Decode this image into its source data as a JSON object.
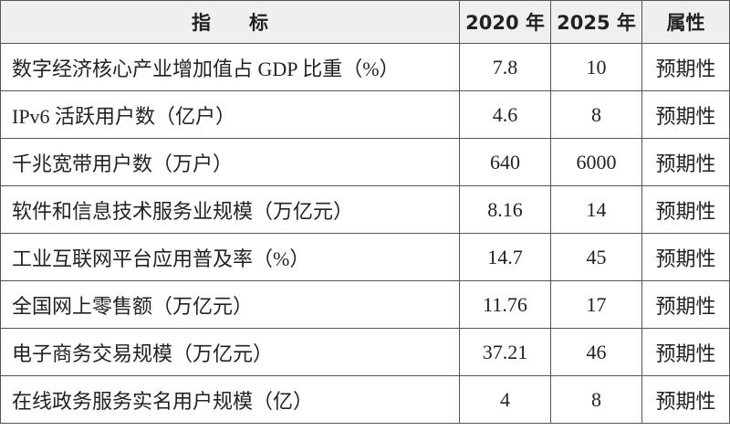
{
  "table": {
    "header": [
      "指　　标",
      "2020 年",
      "2025 年",
      "属性"
    ],
    "rows": [
      [
        "数字经济核心产业增加值占 GDP 比重（%）",
        "7.8",
        "10",
        "预期性"
      ],
      [
        "IPv6 活跃用户数（亿户）",
        "4.6",
        "8",
        "预期性"
      ],
      [
        "千兆宽带用户数（万户）",
        "640",
        "6000",
        "预期性"
      ],
      [
        "软件和信息技术服务业规模（万亿元）",
        "8.16",
        "14",
        "预期性"
      ],
      [
        "工业互联网平台应用普及率（%）",
        "14.7",
        "45",
        "预期性"
      ],
      [
        "全国网上零售额（万亿元）",
        "11.76",
        "17",
        "预期性"
      ],
      [
        "电子商务交易规模（万亿元）",
        "37.21",
        "46",
        "预期性"
      ],
      [
        "在线政务服务实名用户规模（亿）",
        "4",
        "8",
        "预期性"
      ]
    ]
  }
}
